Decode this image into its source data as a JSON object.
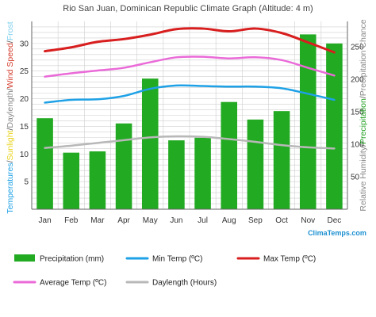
{
  "chart_data": {
    "type": "bar",
    "title": "Rio San Juan, Dominican Republic Climate Graph (Altitude: 4 m)",
    "categories": [
      "Jan",
      "Feb",
      "Mar",
      "Apr",
      "May",
      "Jun",
      "Jul",
      "Aug",
      "Sep",
      "Oct",
      "Nov",
      "Dec"
    ],
    "left_axis": {
      "label_parts": [
        {
          "text": "Temperatures",
          "color": "#1ea1e6"
        },
        {
          "text": "/",
          "color": "#555555"
        },
        {
          "text": "Sunlight",
          "color": "#e8d21a"
        },
        {
          "text": "/",
          "color": "#555555"
        },
        {
          "text": "Daylength",
          "color": "#8a8a8a"
        },
        {
          "text": "/",
          "color": "#555555"
        },
        {
          "text": "Wind Speed",
          "color": "#d43a2a"
        },
        {
          "text": "/",
          "color": "#555555"
        },
        {
          "text": "Frost",
          "color": "#7fd0ee"
        }
      ],
      "ylim": [
        0,
        34
      ],
      "ticks": [
        5,
        10,
        15,
        20,
        25,
        30
      ]
    },
    "right_axis": {
      "label_parts": [
        {
          "text": "Relative Humidity",
          "color": "#888888"
        },
        {
          "text": "/",
          "color": "#555555"
        },
        {
          "text": "Precipitation",
          "color": "#1f9f1f"
        },
        {
          "text": "/",
          "color": "#555555"
        },
        {
          "text": "Precipitation Chance",
          "color": "#888888"
        }
      ],
      "ylim": [
        0,
        289
      ],
      "ticks": [
        50,
        100,
        150,
        200,
        250
      ]
    },
    "series": [
      {
        "name": "Precipitation (mm)",
        "type": "bar",
        "axis": "right",
        "color": "#22aa22",
        "values": [
          140,
          87,
          89,
          132,
          201,
          106,
          110,
          165,
          138,
          151,
          269,
          255
        ]
      },
      {
        "name": "Min Temp (ºC)",
        "type": "line",
        "axis": "left",
        "color": "#1ea1e6",
        "values": [
          19.3,
          19.8,
          19.9,
          20.5,
          21.8,
          22.4,
          22.3,
          22.2,
          22.2,
          21.9,
          20.9,
          19.8
        ]
      },
      {
        "name": "Max Temp (ºC)",
        "type": "line",
        "axis": "left",
        "color": "#d81e1e",
        "values": [
          28.6,
          29.3,
          30.3,
          30.8,
          31.6,
          32.6,
          32.7,
          32.2,
          32.7,
          31.9,
          30.2,
          28.4
        ]
      },
      {
        "name": "Average Temp (ºC)",
        "type": "line",
        "axis": "left",
        "color": "#ea6ad8",
        "values": [
          24.0,
          24.6,
          25.1,
          25.6,
          26.6,
          27.5,
          27.6,
          27.3,
          27.5,
          27.0,
          25.6,
          24.2
        ]
      },
      {
        "name": "Daylength (Hours)",
        "type": "line",
        "axis": "left",
        "color": "#b8b8b8",
        "values": [
          11.1,
          11.5,
          12.0,
          12.5,
          13.0,
          13.2,
          13.1,
          12.7,
          12.2,
          11.6,
          11.2,
          11.0
        ]
      }
    ],
    "grid": true
  },
  "branding": {
    "text": "ClimaTemps.com"
  }
}
